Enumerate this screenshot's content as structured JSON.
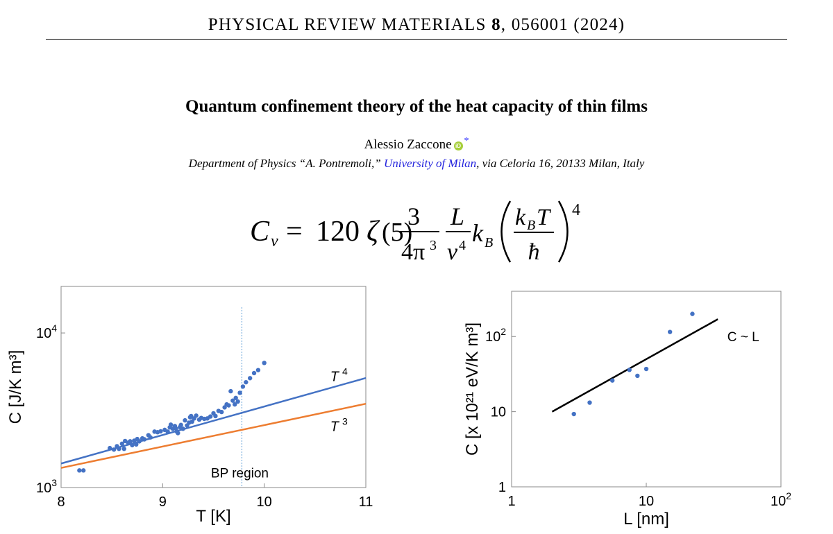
{
  "header": {
    "journal_name": "PHYSICAL REVIEW MATERIALS",
    "volume": "8",
    "citation_rest": ", 056001 (2024)"
  },
  "article": {
    "title": "Quantum confinement theory of the heat capacity of thin films",
    "author": "Alessio Zaccone",
    "orcid_label": "iD",
    "author_mark": "*",
    "affiliation_before": "Department of Physics “A. Pontremoli,” ",
    "affiliation_link": "University of Milan",
    "affiliation_after": ", via Celoria 16, 20133 Milan, Italy"
  },
  "equation": {
    "lhs_symbol": "C",
    "lhs_subscript": "v",
    "equals": "=",
    "coefficient": "120",
    "zeta": "ζ",
    "zeta_arg": "(5)",
    "frac1_num": "3",
    "frac1_den": "4π",
    "frac1_den_exp": "3",
    "frac2_num": "L",
    "frac2_den": "v",
    "frac2_den_exp": "4",
    "kb": "k",
    "kb_sub": "B",
    "inner_num_k": "k",
    "inner_num_sub": "B",
    "inner_num_T": "T",
    "inner_den": "ħ",
    "outer_exp": "4"
  },
  "colors": {
    "data_points": "#4472c4",
    "t4_line": "#4472c4",
    "t3_line": "#ed7d31",
    "bp_line": "#5b9bd5",
    "fit_line": "#000000",
    "link": "#2222dd",
    "orcid": "#a6ce39"
  },
  "chart_data": [
    {
      "type": "scatter",
      "xlabel": "T [K]",
      "ylabel": "C [J/K m³]",
      "xlim": [
        8,
        11
      ],
      "ylim": [
        1000,
        20000
      ],
      "y_scale": "log",
      "x_ticks": [
        "8",
        "9",
        "10",
        "11"
      ],
      "y_ticks": [
        {
          "value": 1000,
          "base": "10",
          "exp": "3"
        },
        {
          "value": 10000,
          "base": "10",
          "exp": "4"
        }
      ],
      "series": [
        {
          "kind": "points",
          "values": [
            [
              8.18,
              1290
            ],
            [
              8.22,
              1290
            ],
            [
              8.48,
              1800
            ],
            [
              8.52,
              1760
            ],
            [
              8.55,
              1850
            ],
            [
              8.57,
              1780
            ],
            [
              8.6,
              1920
            ],
            [
              8.62,
              1780
            ],
            [
              8.63,
              2000
            ],
            [
              8.66,
              1950
            ],
            [
              8.68,
              1990
            ],
            [
              8.7,
              1880
            ],
            [
              8.72,
              2010
            ],
            [
              8.74,
              1900
            ],
            [
              8.75,
              2060
            ],
            [
              8.77,
              1990
            ],
            [
              8.8,
              2080
            ],
            [
              8.82,
              2050
            ],
            [
              8.86,
              2180
            ],
            [
              8.88,
              2110
            ],
            [
              8.92,
              2300
            ],
            [
              8.95,
              2280
            ],
            [
              8.98,
              2310
            ],
            [
              9.02,
              2360
            ],
            [
              9.05,
              2300
            ],
            [
              9.07,
              2450
            ],
            [
              9.08,
              2550
            ],
            [
              9.1,
              2400
            ],
            [
              9.12,
              2500
            ],
            [
              9.13,
              2410
            ],
            [
              9.14,
              2300
            ],
            [
              9.15,
              2250
            ],
            [
              9.17,
              2460
            ],
            [
              9.18,
              2540
            ],
            [
              9.2,
              2400
            ],
            [
              9.22,
              2720
            ],
            [
              9.24,
              2520
            ],
            [
              9.26,
              2630
            ],
            [
              9.27,
              2850
            ],
            [
              9.28,
              2900
            ],
            [
              9.29,
              2670
            ],
            [
              9.31,
              2800
            ],
            [
              9.33,
              2920
            ],
            [
              9.36,
              2750
            ],
            [
              9.38,
              2820
            ],
            [
              9.41,
              2780
            ],
            [
              9.44,
              2800
            ],
            [
              9.47,
              2880
            ],
            [
              9.5,
              3020
            ],
            [
              9.52,
              2900
            ],
            [
              9.55,
              3130
            ],
            [
              9.58,
              3080
            ],
            [
              9.61,
              3300
            ],
            [
              9.63,
              3450
            ],
            [
              9.65,
              3400
            ],
            [
              9.67,
              4200
            ],
            [
              9.69,
              3650
            ],
            [
              9.71,
              3450
            ],
            [
              9.72,
              3800
            ],
            [
              9.74,
              3600
            ],
            [
              9.76,
              4100
            ],
            [
              9.79,
              4500
            ],
            [
              9.82,
              4800
            ],
            [
              9.86,
              5100
            ],
            [
              9.9,
              5500
            ],
            [
              9.94,
              5750
            ],
            [
              10.0,
              6400
            ]
          ]
        },
        {
          "kind": "line",
          "name": "T⁴",
          "label_base": "T",
          "label_exp": "4",
          "power": 4,
          "anchor_x": 8,
          "anchor_y": 1430
        },
        {
          "kind": "line",
          "name": "T³",
          "label_base": "T",
          "label_exp": "3",
          "power": 3,
          "anchor_x": 8,
          "anchor_y": 1340
        }
      ],
      "vline": {
        "x": 9.78,
        "label": "BP region"
      }
    },
    {
      "type": "scatter",
      "xlabel": "L [nm]",
      "ylabel": "C [x 10²¹ eV/K m³]",
      "x_scale": "log",
      "y_scale": "log",
      "xlim": [
        1,
        100
      ],
      "ylim": [
        1,
        400
      ],
      "x_ticks": [
        {
          "value": 1,
          "base": "1",
          "exp": ""
        },
        {
          "value": 10,
          "base": "10",
          "exp": ""
        },
        {
          "value": 100,
          "base": "10",
          "exp": "2"
        }
      ],
      "y_ticks": [
        {
          "value": 1,
          "base": "1",
          "exp": ""
        },
        {
          "value": 10,
          "base": "10",
          "exp": ""
        },
        {
          "value": 100,
          "base": "10",
          "exp": "2"
        }
      ],
      "points": [
        [
          2.9,
          9.3
        ],
        [
          3.8,
          13.2
        ],
        [
          5.6,
          26
        ],
        [
          7.5,
          36
        ],
        [
          8.6,
          30
        ],
        [
          10,
          37
        ],
        [
          15,
          115
        ],
        [
          22,
          200
        ]
      ],
      "fit": {
        "label": "C ~ L",
        "x": [
          2,
          34
        ],
        "y": [
          10,
          170
        ]
      }
    }
  ]
}
